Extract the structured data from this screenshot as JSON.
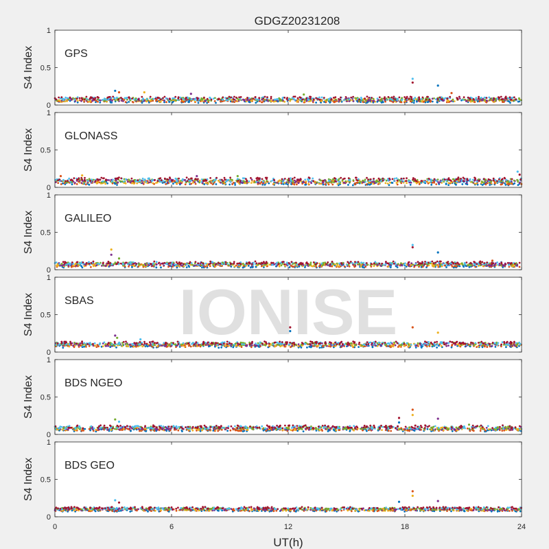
{
  "figure": {
    "title": "GDGZ20231208",
    "xlabel": "UT(h)",
    "watermark": "IONISE",
    "x_ticks": [
      0,
      6,
      12,
      18,
      24
    ],
    "xlim": [
      0,
      24
    ],
    "background": "#f0f0f0",
    "axes_background": "#ffffff"
  },
  "series_colors": [
    "#0072bd",
    "#d95319",
    "#edb120",
    "#7e2f8e",
    "#77ac30",
    "#4dbeee",
    "#a2142f"
  ],
  "chart_data": [
    {
      "type": "scatter",
      "label": "GPS",
      "ylabel": "S4 Index",
      "ylim": [
        0,
        1
      ],
      "y_ticks": [
        0,
        0.5,
        1
      ],
      "baseline": {
        "mean": 0.07,
        "spread": 0.04
      },
      "spikes": [
        {
          "x": 3.1,
          "y": 0.19
        },
        {
          "x": 3.3,
          "y": 0.17
        },
        {
          "x": 4.6,
          "y": 0.17
        },
        {
          "x": 7.0,
          "y": 0.15
        },
        {
          "x": 12.8,
          "y": 0.14
        },
        {
          "x": 18.4,
          "y": 0.35
        },
        {
          "x": 18.4,
          "y": 0.3
        },
        {
          "x": 19.7,
          "y": 0.26
        },
        {
          "x": 20.4,
          "y": 0.16
        }
      ]
    },
    {
      "type": "scatter",
      "label": "GLONASS",
      "ylabel": "S4 Index",
      "ylim": [
        0,
        1
      ],
      "y_ticks": [
        0,
        0.5,
        1
      ],
      "baseline": {
        "mean": 0.08,
        "spread": 0.05
      },
      "spikes": [
        {
          "x": 0.3,
          "y": 0.15
        },
        {
          "x": 1.4,
          "y": 0.16
        },
        {
          "x": 7.3,
          "y": 0.15
        },
        {
          "x": 9.4,
          "y": 0.15
        },
        {
          "x": 23.8,
          "y": 0.21
        },
        {
          "x": 23.9,
          "y": 0.17
        }
      ]
    },
    {
      "type": "scatter",
      "label": "GALILEO",
      "ylabel": "S4 Index",
      "ylim": [
        0,
        1
      ],
      "y_ticks": [
        0,
        0.5,
        1
      ],
      "baseline": {
        "mean": 0.07,
        "spread": 0.04
      },
      "spikes": [
        {
          "x": 2.9,
          "y": 0.27
        },
        {
          "x": 2.9,
          "y": 0.2
        },
        {
          "x": 3.3,
          "y": 0.15
        },
        {
          "x": 18.4,
          "y": 0.33
        },
        {
          "x": 18.4,
          "y": 0.3
        },
        {
          "x": 19.7,
          "y": 0.23
        },
        {
          "x": 22.5,
          "y": 0.12
        }
      ]
    },
    {
      "type": "scatter",
      "label": "SBAS",
      "ylabel": "S4 Index",
      "ylim": [
        0,
        1
      ],
      "y_ticks": [
        0,
        0.5,
        1
      ],
      "baseline": {
        "mean": 0.1,
        "spread": 0.04
      },
      "spikes": [
        {
          "x": 3.1,
          "y": 0.22
        },
        {
          "x": 3.2,
          "y": 0.19
        },
        {
          "x": 4.4,
          "y": 0.17
        },
        {
          "x": 12.1,
          "y": 0.33
        },
        {
          "x": 12.1,
          "y": 0.28
        },
        {
          "x": 18.4,
          "y": 0.33
        },
        {
          "x": 19.7,
          "y": 0.26
        }
      ]
    },
    {
      "type": "scatter",
      "label": "BDS NGEO",
      "ylabel": "S4 Index",
      "ylim": [
        0,
        1
      ],
      "y_ticks": [
        0,
        0.5,
        1
      ],
      "baseline": {
        "mean": 0.08,
        "spread": 0.04
      },
      "spikes": [
        {
          "x": 3.1,
          "y": 0.2
        },
        {
          "x": 3.3,
          "y": 0.17
        },
        {
          "x": 17.7,
          "y": 0.22
        },
        {
          "x": 17.7,
          "y": 0.16
        },
        {
          "x": 18.4,
          "y": 0.33
        },
        {
          "x": 18.4,
          "y": 0.26
        },
        {
          "x": 19.7,
          "y": 0.21
        },
        {
          "x": 21.3,
          "y": 0.13
        }
      ]
    },
    {
      "type": "scatter",
      "label": "BDS GEO",
      "ylabel": "S4 Index",
      "ylim": [
        0,
        1
      ],
      "y_ticks": [
        0,
        0.5,
        1
      ],
      "baseline": {
        "mean": 0.1,
        "spread": 0.03
      },
      "spikes": [
        {
          "x": 3.1,
          "y": 0.22
        },
        {
          "x": 3.3,
          "y": 0.19
        },
        {
          "x": 17.7,
          "y": 0.2
        },
        {
          "x": 18.4,
          "y": 0.34
        },
        {
          "x": 18.4,
          "y": 0.28
        },
        {
          "x": 19.7,
          "y": 0.21
        }
      ]
    }
  ]
}
